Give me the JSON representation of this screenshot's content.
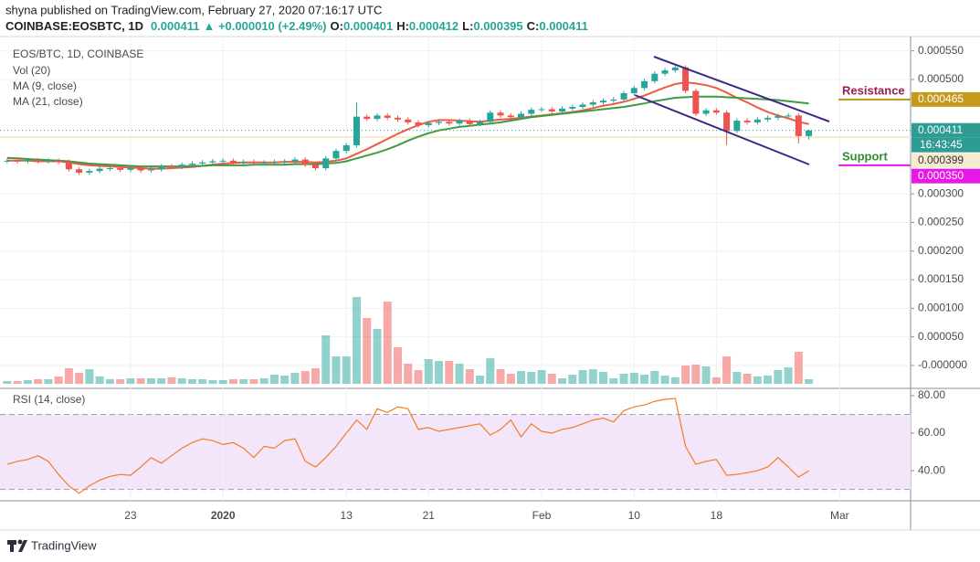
{
  "header": {
    "byline": "shyna published on TradingView.com, February 27, 2020 07:16:17 UTC",
    "symbol": "COINBASE:EOSBTC, 1D",
    "last": "0.000411",
    "change": "▲ +0.000010 (+2.49%)",
    "ohlc": [
      {
        "key": "O:",
        "value": "0.000401"
      },
      {
        "key": "H:",
        "value": "0.000412"
      },
      {
        "key": "L:",
        "value": "0.000395"
      },
      {
        "key": "C:",
        "value": "0.000411"
      }
    ]
  },
  "footer": {
    "brand": "TradingView"
  },
  "chart_data": {
    "type": "candlestick",
    "title": "EOS/BTC, 1D, COINBASE",
    "up_color": "#26a69a",
    "down_color": "#ef5350",
    "grid": true,
    "xlim": [
      -0.7,
      87.9
    ],
    "xticks": [
      {
        "value": 12,
        "label": "23"
      },
      {
        "value": 21,
        "label": "2020"
      },
      {
        "value": 33,
        "label": "13"
      },
      {
        "value": 41,
        "label": "21"
      },
      {
        "value": 52,
        "label": "Feb"
      },
      {
        "value": 61,
        "label": "10"
      },
      {
        "value": 69,
        "label": "18"
      },
      {
        "value": 81,
        "label": "Mar"
      }
    ],
    "ylim": [
      -4e-05,
      0.000575
    ],
    "yticks": [
      {
        "value": 0.00055,
        "label": "0.000550"
      },
      {
        "value": 0.0005,
        "label": "0.000500"
      },
      {
        "value": 0.0003,
        "label": "0.000300"
      },
      {
        "value": 0.00025,
        "label": "0.000250"
      },
      {
        "value": 0.0002,
        "label": "0.000200"
      },
      {
        "value": 0.00015,
        "label": "0.000150"
      },
      {
        "value": 0.0001,
        "label": "0.000100"
      },
      {
        "value": 5e-05,
        "label": "0.000050"
      },
      {
        "value": 0,
        "label": "-0.000000"
      }
    ],
    "open": [
      0.000357,
      0.000358,
      0.000357,
      0.000359,
      0.000357,
      0.000358,
      0.000356,
      0.000343,
      0.000337,
      0.00034,
      0.000344,
      0.000345,
      0.000342,
      0.000345,
      0.000341,
      0.000343,
      0.000348,
      0.000347,
      0.000351,
      0.000353,
      0.000355,
      0.000357,
      0.000358,
      0.000354,
      0.000356,
      0.000354,
      0.000355,
      0.000356,
      0.000357,
      0.00036,
      0.000351,
      0.000345,
      0.000362,
      0.000375,
      0.000385,
      0.000435,
      0.000431,
      0.000437,
      0.000433,
      0.00043,
      0.000425,
      0.00042,
      0.000424,
      0.000426,
      0.000423,
      0.000428,
      0.000422,
      0.000426,
      0.000442,
      0.000437,
      0.000434,
      0.00044,
      0.000447,
      0.000448,
      0.000444,
      0.000449,
      0.000452,
      0.000456,
      0.00046,
      0.000463,
      0.000465,
      0.000476,
      0.000485,
      0.000497,
      0.00051,
      0.000516,
      0.000521,
      0.00048,
      0.00044,
      0.000446,
      0.000442,
      0.00041,
      0.000428,
      0.000425,
      0.00043,
      0.000433,
      0.000436,
      0.000437,
      0.000401
    ],
    "high": [
      0.000362,
      0.000362,
      0.000363,
      0.000363,
      0.000362,
      0.000362,
      0.00036,
      0.000347,
      0.000344,
      0.000348,
      0.000349,
      0.000349,
      0.000349,
      0.000349,
      0.000347,
      0.000352,
      0.000352,
      0.000355,
      0.000357,
      0.000359,
      0.000361,
      0.000362,
      0.000362,
      0.00036,
      0.00036,
      0.000359,
      0.00036,
      0.000361,
      0.000364,
      0.000364,
      0.000355,
      0.000366,
      0.000379,
      0.000389,
      0.00046,
      0.000439,
      0.000441,
      0.000441,
      0.000437,
      0.000434,
      0.000429,
      0.000428,
      0.00043,
      0.00043,
      0.000432,
      0.000432,
      0.00043,
      0.000446,
      0.000446,
      0.000441,
      0.000444,
      0.000451,
      0.000452,
      0.000452,
      0.000453,
      0.000456,
      0.00046,
      0.000464,
      0.000467,
      0.000469,
      0.00048,
      0.000489,
      0.000501,
      0.000514,
      0.00052,
      0.000526,
      0.000525,
      0.000484,
      0.00045,
      0.00045,
      0.000446,
      0.000432,
      0.000432,
      0.000434,
      0.000437,
      0.00044,
      0.000441,
      0.000441,
      0.000412
    ],
    "low": [
      0.000353,
      0.000353,
      0.000353,
      0.000353,
      0.000353,
      0.000352,
      0.000339,
      0.000333,
      0.000333,
      0.000336,
      0.00034,
      0.000338,
      0.000338,
      0.000337,
      0.000337,
      0.000339,
      0.000343,
      0.000343,
      0.000347,
      0.000349,
      0.000351,
      0.000353,
      0.00035,
      0.00035,
      0.00035,
      0.00035,
      0.000351,
      0.000352,
      0.000353,
      0.000347,
      0.000341,
      0.000341,
      0.000358,
      0.000371,
      0.000381,
      0.000427,
      0.000427,
      0.000429,
      0.000426,
      0.000421,
      0.000416,
      0.000416,
      0.00042,
      0.000419,
      0.000419,
      0.000418,
      0.000418,
      0.000422,
      0.000433,
      0.00043,
      0.00043,
      0.000436,
      0.000443,
      0.00044,
      0.00044,
      0.000445,
      0.000448,
      0.000452,
      0.000456,
      0.000459,
      0.000461,
      0.000472,
      0.000481,
      0.000493,
      0.000506,
      0.000512,
      0.000476,
      0.000436,
      0.000436,
      0.000438,
      0.000385,
      0.000406,
      0.000421,
      0.000421,
      0.000426,
      0.000429,
      0.000432,
      0.000388,
      0.000395
    ],
    "close": [
      0.000358,
      0.000357,
      0.000359,
      0.000357,
      0.000358,
      0.000356,
      0.000343,
      0.000337,
      0.00034,
      0.000344,
      0.000345,
      0.000342,
      0.000345,
      0.000341,
      0.000343,
      0.000348,
      0.000347,
      0.000351,
      0.000353,
      0.000355,
      0.000357,
      0.000358,
      0.000354,
      0.000356,
      0.000354,
      0.000355,
      0.000356,
      0.000357,
      0.00036,
      0.000351,
      0.000345,
      0.000362,
      0.000375,
      0.000385,
      0.000435,
      0.000431,
      0.000437,
      0.000433,
      0.00043,
      0.000425,
      0.00042,
      0.000424,
      0.000426,
      0.000423,
      0.000428,
      0.000422,
      0.000426,
      0.000442,
      0.000437,
      0.000434,
      0.00044,
      0.000447,
      0.000448,
      0.000444,
      0.000449,
      0.000452,
      0.000456,
      0.00046,
      0.000463,
      0.000465,
      0.000476,
      0.000485,
      0.000497,
      0.00051,
      0.000516,
      0.000521,
      0.00048,
      0.00044,
      0.000446,
      0.000442,
      0.00041,
      0.000428,
      0.000425,
      0.00043,
      0.000433,
      0.000436,
      0.000437,
      0.000401,
      0.000411
    ],
    "series": [
      {
        "name": "MA (9, close)",
        "color": "#ef5a45",
        "values": [
          0.000358,
          0.000358,
          0.000358,
          0.000357,
          0.000357,
          0.000357,
          0.000355,
          0.000352,
          0.00035,
          0.000349,
          0.000348,
          0.000347,
          0.000346,
          0.000345,
          0.000344,
          0.000344,
          0.000345,
          0.000346,
          0.000347,
          0.000349,
          0.000351,
          0.000353,
          0.000354,
          0.000355,
          0.000355,
          0.000355,
          0.000355,
          0.000356,
          0.000356,
          0.000356,
          0.000355,
          0.000356,
          0.000358,
          0.000362,
          0.00037,
          0.000378,
          0.000387,
          0.000396,
          0.000405,
          0.000413,
          0.00042,
          0.000426,
          0.000429,
          0.000429,
          0.000428,
          0.000427,
          0.000426,
          0.000428,
          0.00043,
          0.000431,
          0.000433,
          0.000435,
          0.000437,
          0.000439,
          0.000441,
          0.000443,
          0.000446,
          0.00045,
          0.000454,
          0.000457,
          0.000461,
          0.000466,
          0.000472,
          0.000479,
          0.000486,
          0.000492,
          0.000495,
          0.000493,
          0.00049,
          0.000485,
          0.000477,
          0.000468,
          0.00046,
          0.000451,
          0.000443,
          0.000437,
          0.000432,
          0.000426,
          0.000422
        ]
      },
      {
        "name": "MA (21, close)",
        "color": "#3f9b43",
        "values": [
          0.000363,
          0.000362,
          0.000361,
          0.00036,
          0.000359,
          0.000358,
          0.000357,
          0.000355,
          0.000353,
          0.000352,
          0.000351,
          0.00035,
          0.000349,
          0.000348,
          0.000348,
          0.000348,
          0.000348,
          0.000348,
          0.000349,
          0.000349,
          0.00035,
          0.00035,
          0.00035,
          0.00035,
          0.000351,
          0.000351,
          0.000351,
          0.000351,
          0.000352,
          0.000352,
          0.000352,
          0.000353,
          0.000354,
          0.000357,
          0.000362,
          0.000367,
          0.000372,
          0.000378,
          0.000385,
          0.000393,
          0.0004,
          0.000406,
          0.000411,
          0.000414,
          0.000417,
          0.000419,
          0.000421,
          0.000423,
          0.000425,
          0.000428,
          0.000431,
          0.000434,
          0.000436,
          0.000438,
          0.00044,
          0.000442,
          0.000444,
          0.000446,
          0.000448,
          0.00045,
          0.000452,
          0.000455,
          0.000458,
          0.000462,
          0.000465,
          0.000468,
          0.000469,
          0.00047,
          0.00047,
          0.00047,
          0.000469,
          0.000468,
          0.000467,
          0.000466,
          0.000465,
          0.000464,
          0.000462,
          0.00046,
          0.000458
        ]
      }
    ],
    "volume": {
      "name": "Vol (20)",
      "ylim": [
        0,
        380
      ],
      "values": [
        3,
        3,
        4,
        5,
        5,
        8,
        17,
        12,
        16,
        8,
        5,
        5,
        6,
        6,
        6,
        6,
        7,
        6,
        5,
        5,
        4,
        4,
        5,
        5,
        5,
        6,
        10,
        9,
        12,
        14,
        17,
        53,
        30,
        30,
        95,
        72,
        60,
        90,
        40,
        22,
        15,
        27,
        25,
        25,
        22,
        16,
        9,
        28,
        16,
        11,
        14,
        13,
        15,
        11,
        6,
        10,
        15,
        16,
        13,
        6,
        11,
        12,
        10,
        14,
        9,
        7,
        20,
        21,
        19,
        7,
        30,
        13,
        11,
        8,
        9,
        15,
        18,
        35,
        5
      ]
    },
    "rsi": {
      "name": "RSI (14, close)",
      "color": "#f57c20",
      "ylim": [
        24,
        82.4
      ],
      "band": [
        30,
        70
      ],
      "yticks": [
        {
          "value": 80,
          "label": "80.00"
        },
        {
          "value": 60,
          "label": "60.00"
        },
        {
          "value": 40,
          "label": "40.00"
        }
      ],
      "values": [
        43.4,
        45,
        46,
        48,
        45,
        38,
        32,
        28,
        32,
        35,
        37,
        38,
        37.6,
        42,
        47,
        44,
        48,
        52,
        55,
        57,
        56,
        54,
        55,
        52,
        47,
        53,
        52,
        56,
        57,
        45,
        42,
        47,
        53,
        60,
        67,
        62,
        73,
        71,
        74,
        73,
        62,
        63,
        61,
        62,
        63,
        64,
        65,
        59,
        62,
        67,
        58,
        65,
        61,
        60,
        62,
        63,
        65,
        67,
        68,
        66,
        72,
        74,
        75,
        77,
        78,
        78.5,
        53,
        43.4,
        45,
        46,
        37.6,
        38,
        39,
        40,
        42,
        47,
        42,
        36.6,
        40
      ]
    },
    "levels": [
      {
        "text": "Resistance",
        "value": 0.000465,
        "color": "#b8921a",
        "text_color": "#9c1b55"
      },
      {
        "text": "Support",
        "value": 0.00035,
        "color": "#e619e6",
        "text_color": "#2f8f2f"
      }
    ],
    "price_labels": [
      {
        "value": 0.000465,
        "label": "0.000465",
        "color": "#c49a1c",
        "text_color": "#ffffff",
        "style": "none"
      },
      {
        "value": 0.000411,
        "label": "0.000411",
        "color": "#2e9c93",
        "text_color": "#ffffff",
        "style": "dotted"
      },
      {
        "value": 0.000399,
        "label": "0.000399",
        "color": "#f6ead0",
        "text_color": "#333333",
        "style": "full"
      },
      {
        "value": 0.00035,
        "label": "0.000350",
        "color": "#e619e6",
        "text_color": "#ffffff",
        "style": "none"
      }
    ],
    "countdown": "16:43:45"
  }
}
